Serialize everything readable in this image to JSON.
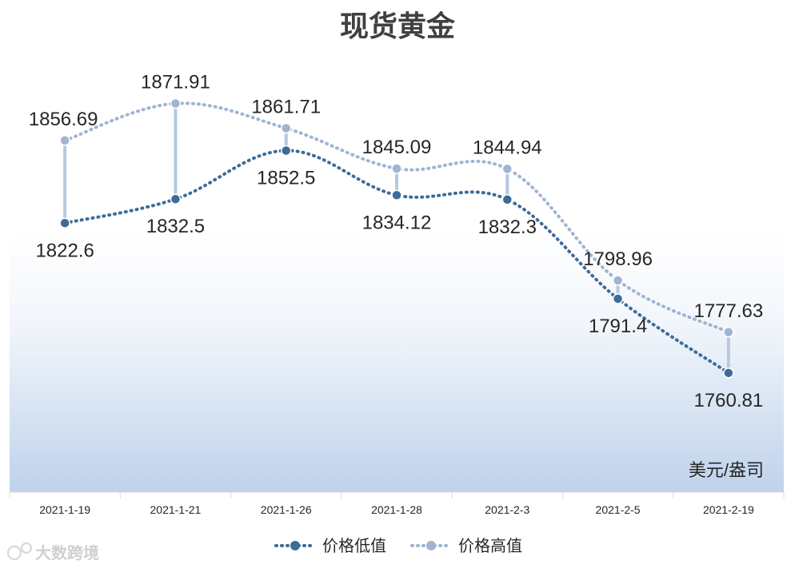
{
  "chart_data": {
    "type": "line",
    "title": "现货黄金",
    "unit_label": "美元/盎司",
    "categories": [
      "2021-1-19",
      "2021-1-21",
      "2021-1-26",
      "2021-1-28",
      "2021-2-3",
      "2021-2-5",
      "2021-2-19"
    ],
    "series": [
      {
        "name": "价格低值",
        "values": [
          1822.6,
          1832.5,
          1852.5,
          1834.12,
          1832.3,
          1791.4,
          1760.81
        ],
        "labels": [
          "1822.6",
          "1832.5",
          "1852.5",
          "1834.12",
          "1832.3",
          "1791.4",
          "1760.81"
        ],
        "color": "#3d6b9a"
      },
      {
        "name": "价格高值",
        "values": [
          1856.69,
          1871.91,
          1861.71,
          1845.09,
          1844.94,
          1798.96,
          1777.63
        ],
        "labels": [
          "1856.69",
          "1871.91",
          "1861.71",
          "1845.09",
          "1844.94",
          "1798.96",
          "1777.63"
        ],
        "color": "#9fb4d2"
      }
    ],
    "legend_position": "bottom",
    "grid": false,
    "smooth": true,
    "hi_lo_lines": true
  },
  "watermark": "大数跨境",
  "colors": {
    "low_series": "#3d6b9a",
    "high_series": "#9fb4d2",
    "hilo_line": "#b7c8e0",
    "plot_gradient_top": "#ffffff",
    "plot_gradient_bottom": "#bfd2eb"
  }
}
